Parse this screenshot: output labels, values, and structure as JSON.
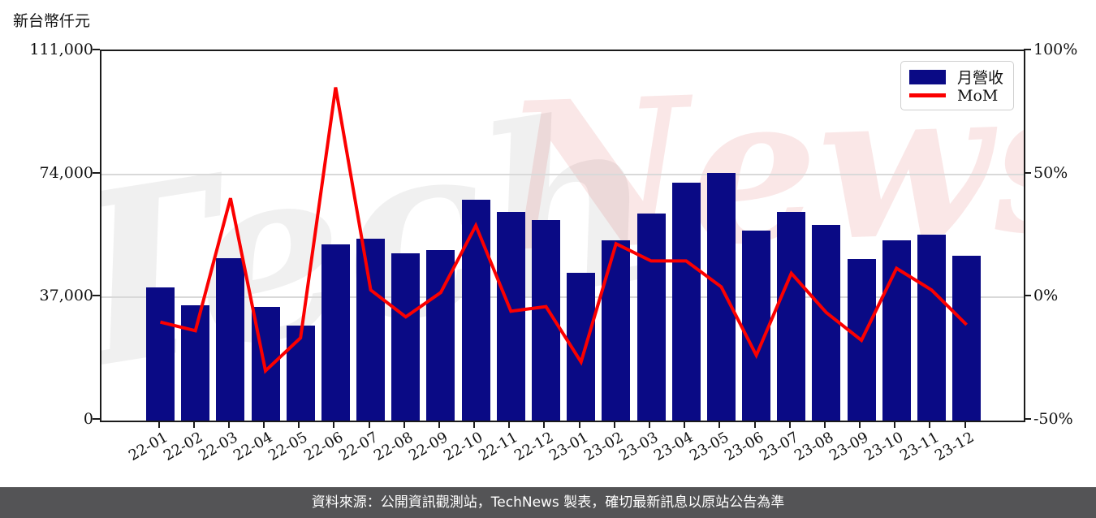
{
  "unit_label": "新台幣仟元",
  "legend": {
    "bar_label": "月營收",
    "line_label": "MoM"
  },
  "watermark": {
    "left_text": "Tech",
    "right_text": "News"
  },
  "footer": {
    "text": "資料來源：公開資訊觀測站，TechNews 製表，確切最新訊息以原站公告為準"
  },
  "colors": {
    "bar": "#0a0a85",
    "line": "#fb0000",
    "grid": "#d9d9d9",
    "axis": "#1b1b1b",
    "footer_bg": "#545456",
    "watermark_pink": "rgba(214,60,60,0.12)",
    "watermark_gray": "rgba(60,60,60,0.08)"
  },
  "chart_data": {
    "type": "bar",
    "title": "新台幣仟元",
    "categories": [
      "22-01",
      "22-02",
      "22-03",
      "22-04",
      "22-05",
      "22-06",
      "22-07",
      "22-08",
      "22-09",
      "22-10",
      "22-11",
      "22-12",
      "23-01",
      "23-02",
      "23-03",
      "23-04",
      "23-05",
      "23-06",
      "23-07",
      "23-08",
      "23-09",
      "23-10",
      "23-11",
      "23-12"
    ],
    "series": [
      {
        "name": "月營收",
        "type": "bar",
        "axis": "left",
        "values": [
          40100,
          34700,
          48700,
          34200,
          28600,
          53000,
          54600,
          50300,
          51300,
          66300,
          62600,
          60300,
          44500,
          54200,
          62200,
          71400,
          74500,
          57000,
          62600,
          58700,
          48500,
          54200,
          55800,
          49600
        ]
      },
      {
        "name": "MoM",
        "type": "line",
        "axis": "right",
        "unit": "%",
        "values": [
          -10.0,
          -13.5,
          40.3,
          -29.8,
          -16.4,
          85.3,
          3.0,
          -7.9,
          2.0,
          29.2,
          -5.6,
          -3.7,
          -26.2,
          21.8,
          14.8,
          14.8,
          4.3,
          -23.5,
          9.8,
          -6.2,
          -17.4,
          11.8,
          3.0,
          -11.1
        ]
      }
    ],
    "left_axis": {
      "label": "新台幣仟元",
      "range": [
        0,
        111000
      ],
      "ticks": [
        {
          "value": 0,
          "label": "0"
        },
        {
          "value": 37000,
          "label": "37,000"
        },
        {
          "value": 74000,
          "label": "74,000"
        },
        {
          "value": 111000,
          "label": "111,000"
        }
      ]
    },
    "right_axis": {
      "range": [
        -50,
        100
      ],
      "ticks": [
        {
          "value": -50,
          "label": "-50%"
        },
        {
          "value": 0,
          "label": "0%"
        },
        {
          "value": 50,
          "label": "50%"
        },
        {
          "value": 100,
          "label": "100%"
        }
      ]
    },
    "grid": "horizontal-inner-ticks-only",
    "legend_position": "top-right",
    "xlabel_rotation_deg": 30
  }
}
